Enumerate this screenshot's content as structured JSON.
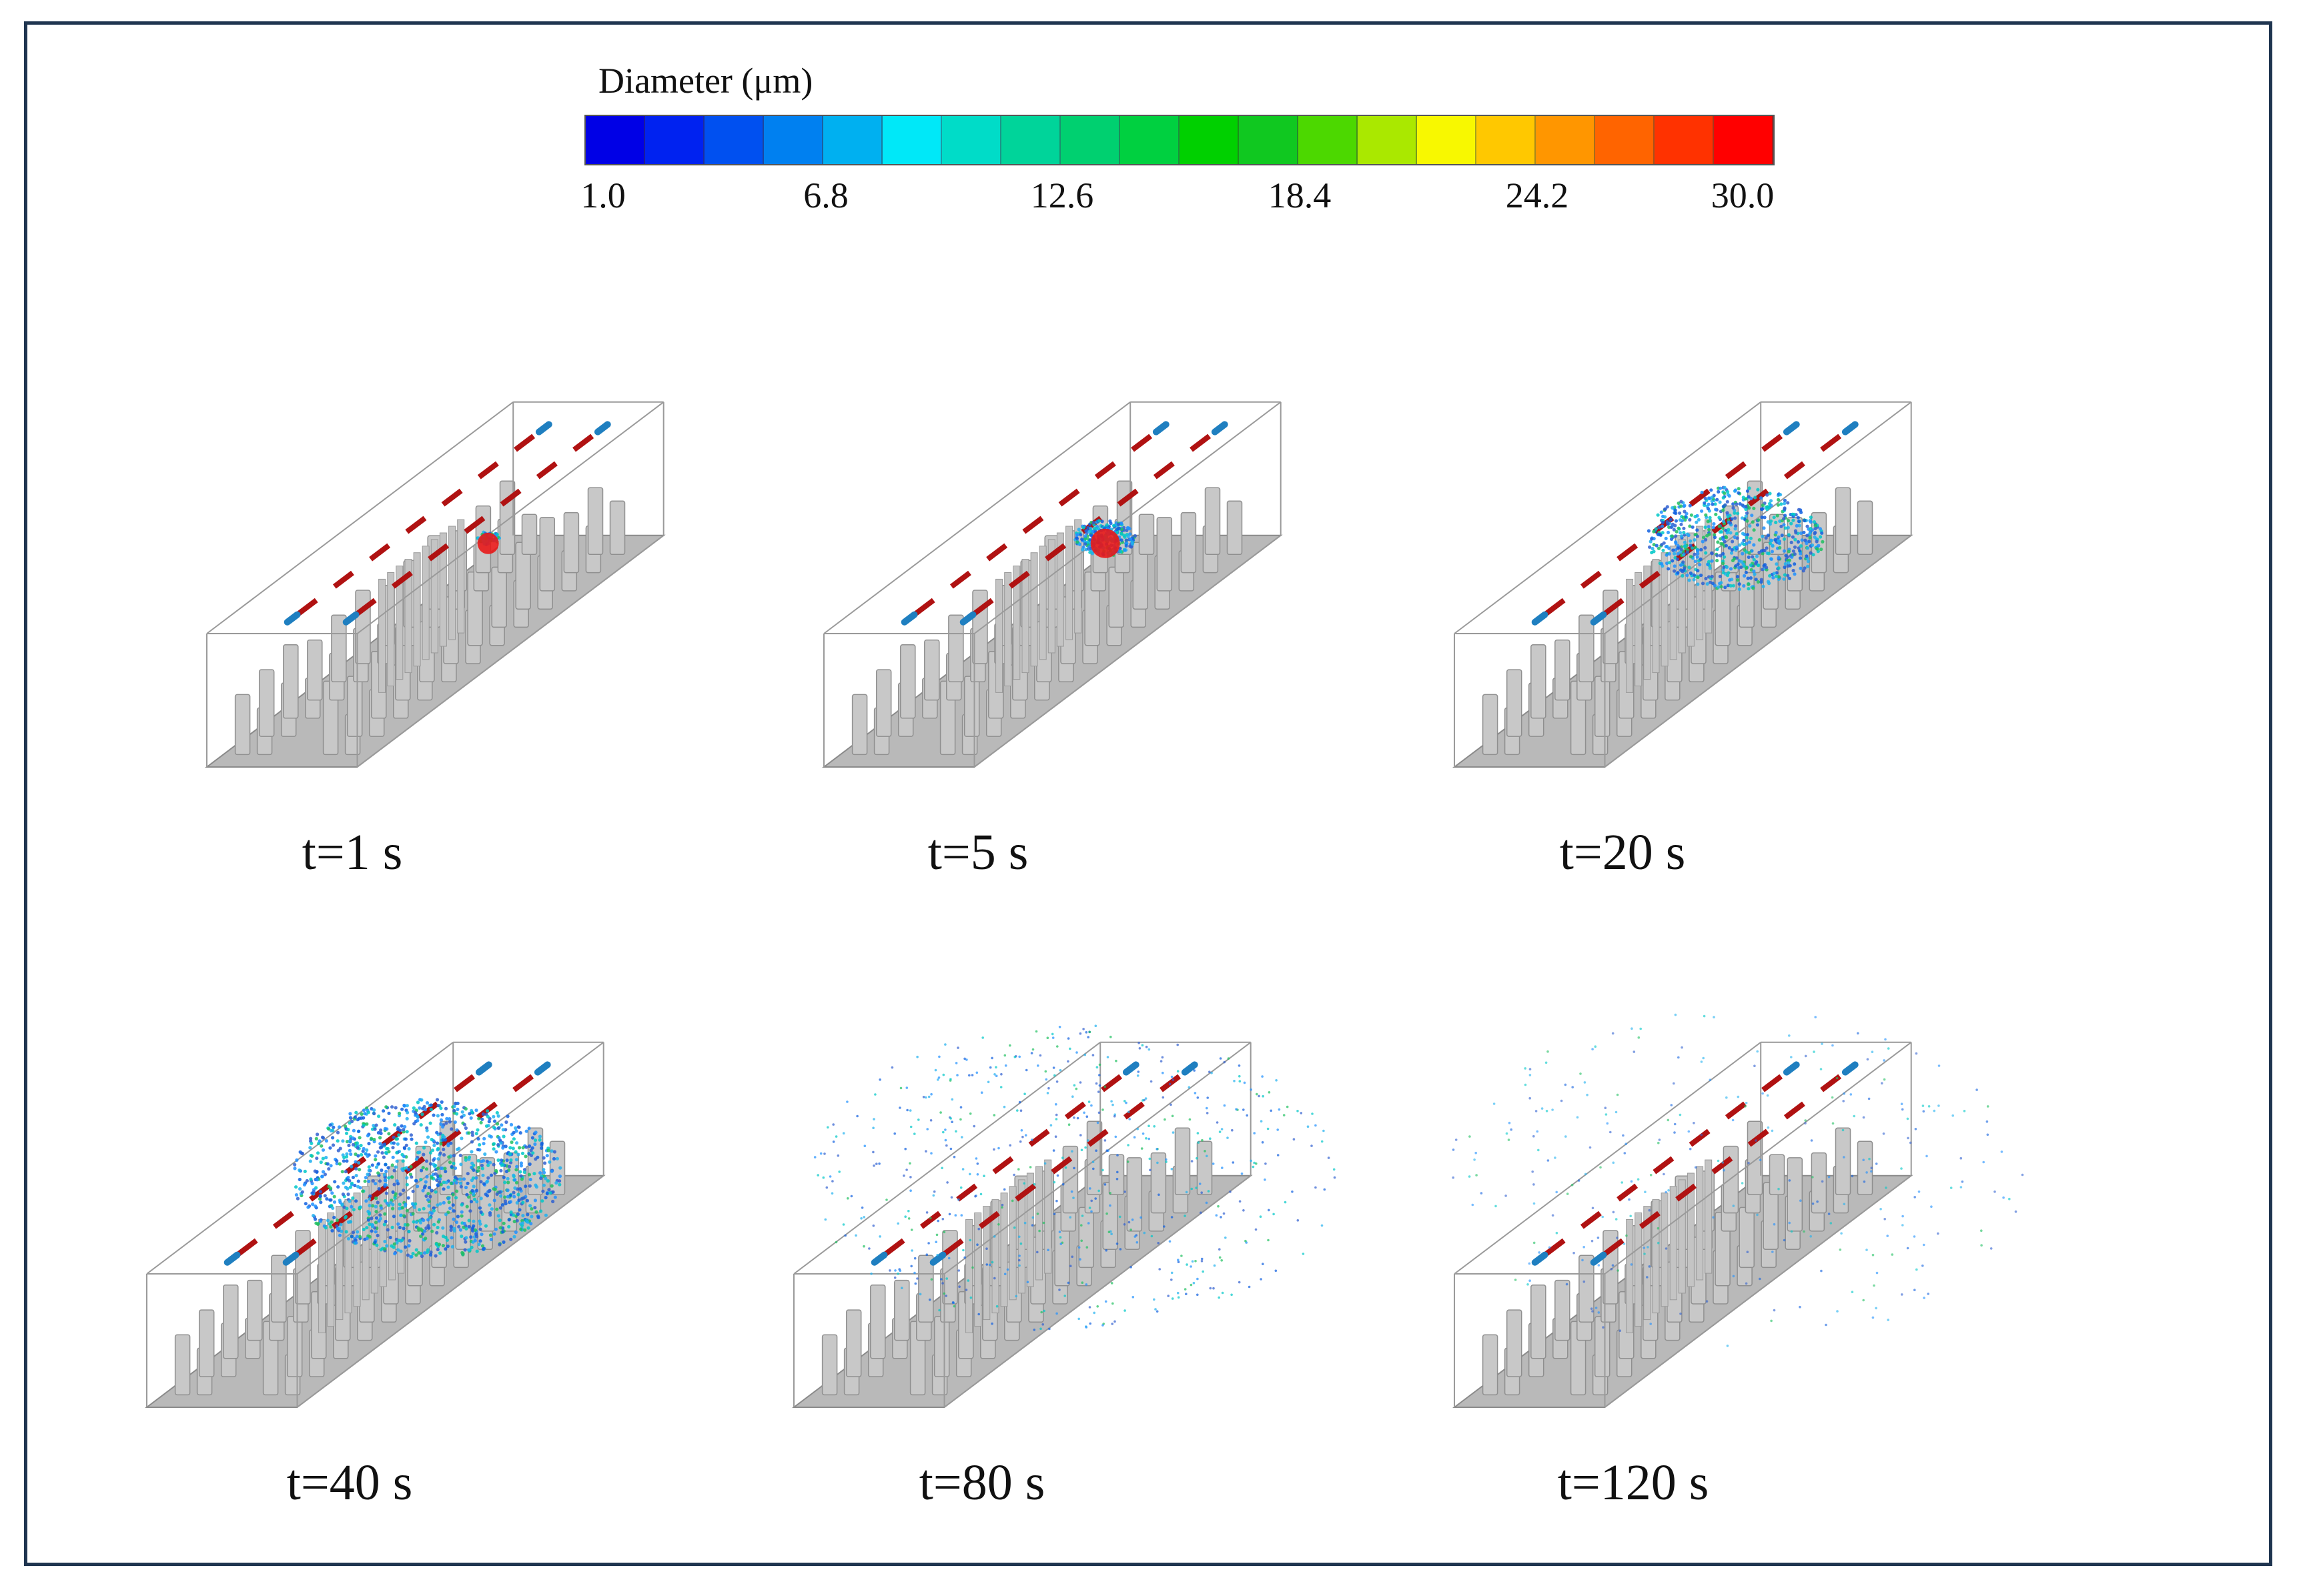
{
  "figure": {
    "colorbar": {
      "title": "Diameter (μm)",
      "ticks": [
        "1.0",
        "6.8",
        "12.6",
        "18.4",
        "24.2",
        "30.0"
      ],
      "colors": [
        "#0000e6",
        "#0022f0",
        "#0050f0",
        "#0080f0",
        "#00b0f0",
        "#00e8f8",
        "#00dcc8",
        "#00d49a",
        "#00d070",
        "#00d040",
        "#00d000",
        "#10c820",
        "#4cd800",
        "#aae800",
        "#f8f800",
        "#ffc800",
        "#ff9600",
        "#ff6400",
        "#ff3200",
        "#ff0000"
      ]
    },
    "panels": [
      {
        "label": "t=1 s",
        "state": "plume-initial"
      },
      {
        "label": "t=5 s",
        "state": "plume-small"
      },
      {
        "label": "t=20 s",
        "state": "plume-spread"
      },
      {
        "label": "t=40 s",
        "state": "plume-large"
      },
      {
        "label": "t=80 s",
        "state": "dispersed"
      },
      {
        "label": "t=120 s",
        "state": "sparse"
      }
    ]
  }
}
